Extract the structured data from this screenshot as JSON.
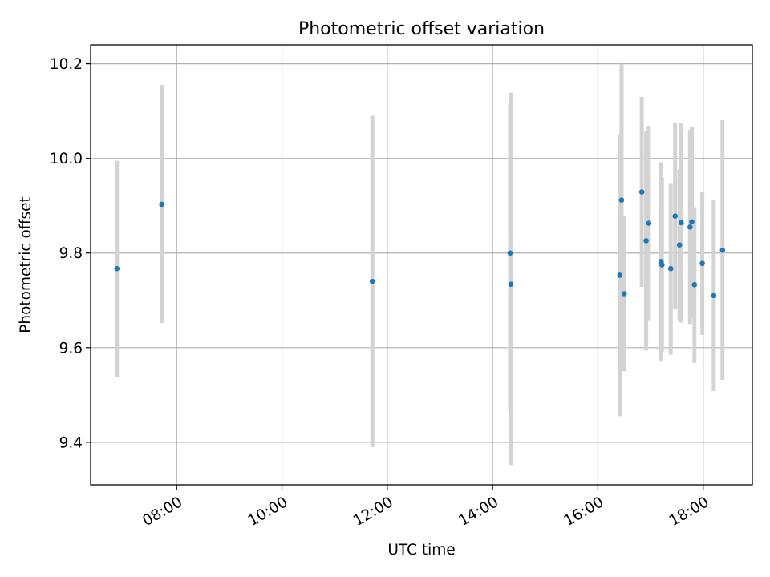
{
  "chart_data": {
    "type": "scatter",
    "title": "Photometric offset variation",
    "xlabel": "UTC time",
    "ylabel": "Photometric offset",
    "x_unit": "UTC time (HH:MM)",
    "xlim": [
      "06:22",
      "18:56"
    ],
    "ylim": [
      9.31,
      10.24
    ],
    "x_ticks": [
      "08:00",
      "10:00",
      "12:00",
      "14:00",
      "16:00",
      "18:00"
    ],
    "y_ticks": [
      9.4,
      9.6,
      9.8,
      10.0,
      10.2
    ],
    "grid": true,
    "colors": {
      "point": "#1f77b4",
      "errorbar": "#d3d3d3",
      "grid": "#b0b0b0"
    },
    "points": [
      {
        "x": "06:52",
        "y": 9.767,
        "err_low": 9.538,
        "err_high": 9.995
      },
      {
        "x": "07:43",
        "y": 9.903,
        "err_low": 9.652,
        "err_high": 10.155
      },
      {
        "x": "11:43",
        "y": 9.74,
        "err_low": 9.39,
        "err_high": 10.09
      },
      {
        "x": "14:20",
        "y": 9.8,
        "err_low": 9.465,
        "err_high": 10.117
      },
      {
        "x": "14:21",
        "y": 9.734,
        "err_low": 9.352,
        "err_high": 10.139
      },
      {
        "x": "16:25",
        "y": 9.753,
        "err_low": 9.455,
        "err_high": 10.052
      },
      {
        "x": "16:27",
        "y": 9.912,
        "err_low": 9.63,
        "err_high": 10.2
      },
      {
        "x": "16:30",
        "y": 9.714,
        "err_low": 9.55,
        "err_high": 9.878
      },
      {
        "x": "16:50",
        "y": 9.929,
        "err_low": 9.728,
        "err_high": 10.13
      },
      {
        "x": "16:55",
        "y": 9.826,
        "err_low": 9.594,
        "err_high": 10.058
      },
      {
        "x": "16:58",
        "y": 9.863,
        "err_low": 9.658,
        "err_high": 10.069
      },
      {
        "x": "17:12",
        "y": 9.782,
        "err_low": 9.572,
        "err_high": 9.992
      },
      {
        "x": "17:13",
        "y": 9.775,
        "err_low": 9.592,
        "err_high": 9.959
      },
      {
        "x": "17:23",
        "y": 9.767,
        "err_low": 9.585,
        "err_high": 9.948
      },
      {
        "x": "17:28",
        "y": 9.878,
        "err_low": 9.682,
        "err_high": 10.075
      },
      {
        "x": "17:33",
        "y": 9.817,
        "err_low": 9.658,
        "err_high": 9.976
      },
      {
        "x": "17:35",
        "y": 9.864,
        "err_low": 9.653,
        "err_high": 10.075
      },
      {
        "x": "17:45",
        "y": 9.855,
        "err_low": 9.65,
        "err_high": 10.06
      },
      {
        "x": "17:47",
        "y": 9.866,
        "err_low": 9.665,
        "err_high": 10.066
      },
      {
        "x": "17:50",
        "y": 9.733,
        "err_low": 9.568,
        "err_high": 9.897
      },
      {
        "x": "17:59",
        "y": 9.778,
        "err_low": 9.627,
        "err_high": 9.93
      },
      {
        "x": "18:12",
        "y": 9.71,
        "err_low": 9.508,
        "err_high": 9.913
      },
      {
        "x": "18:22",
        "y": 9.806,
        "err_low": 9.532,
        "err_high": 10.081
      }
    ]
  }
}
